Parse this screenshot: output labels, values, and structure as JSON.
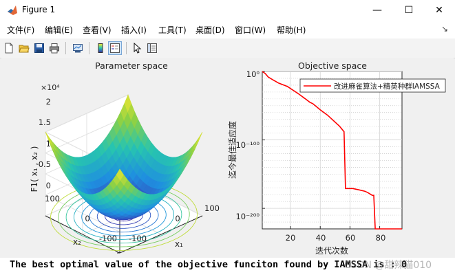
{
  "window": {
    "title": "Figure 1",
    "controls": {
      "minimize": "—",
      "maximize": "☐",
      "close": "✕"
    }
  },
  "menu": {
    "items": [
      {
        "label": "文件(F)"
      },
      {
        "label": "编辑(E)"
      },
      {
        "label": "查看(V)"
      },
      {
        "label": "插入(I)"
      },
      {
        "label": "工具(T)"
      },
      {
        "label": "桌面(D)"
      },
      {
        "label": "窗口(W)"
      },
      {
        "label": "帮助(H)"
      }
    ],
    "overflow_glyph": "↘"
  },
  "toolbar": {
    "icons": [
      "new-figure-icon",
      "open-file-icon",
      "save-icon",
      "print-icon",
      "link-plot-icon",
      "colorbar-icon",
      "legend-icon",
      "pointer-icon",
      "property-inspector-icon"
    ]
  },
  "chart_data": [
    {
      "type": "surface",
      "title": "Parameter space",
      "xlabel": "x₁",
      "ylabel": "x₂",
      "zlabel": "F1( x₁ , x₂ )",
      "z_exponent": "×10⁴",
      "z_ticks": [
        "0",
        "0.5",
        "1",
        "1.5",
        "2"
      ],
      "x_ticks": [
        "-100",
        "0",
        "100"
      ],
      "y_ticks": [
        "-100",
        "0",
        "100"
      ],
      "xlim": [
        -100,
        100
      ],
      "ylim": [
        -100,
        100
      ],
      "zlim": [
        0,
        20000
      ],
      "function": "x1^2 + x2^2",
      "colormap": [
        "#3e26a8",
        "#1f8fe0",
        "#27c4b0",
        "#8bd046",
        "#f6e92e"
      ],
      "contour_floor": true
    },
    {
      "type": "line",
      "title": "Objective space",
      "xlabel": "迭代次数",
      "ylabel": "迄今最佳适应度",
      "yscale": "log",
      "xlim": [
        1,
        95
      ],
      "ylim": [
        1e-230,
        1
      ],
      "x_ticks": [
        "20",
        "40",
        "60",
        "80"
      ],
      "y_ticks": [
        "10⁰",
        "10⁻¹⁰⁰",
        "10⁻²⁰⁰"
      ],
      "grid": true,
      "legend_location": "top-right",
      "series": [
        {
          "name": "改进麻雀算法+精英种群IAMSSA",
          "color": "#ff0000",
          "x": [
            1,
            3,
            5,
            8,
            12,
            18,
            25,
            30,
            33,
            35,
            40,
            45,
            48,
            53,
            56,
            57,
            58,
            62,
            66,
            70,
            72,
            75,
            76,
            77,
            80,
            85,
            90,
            95
          ],
          "log10_y": [
            0,
            -3,
            -8,
            -12,
            -17,
            -22,
            -32,
            -40,
            -45,
            -47,
            -56,
            -64,
            -70,
            -80,
            -88,
            -171,
            -171,
            -171,
            -173,
            -175,
            -177,
            -181,
            -181,
            -230,
            -230,
            -230,
            -230,
            -230
          ]
        }
      ]
    }
  ],
  "console": {
    "text": "The best optimal value of the objective funciton found by IAMSSA is : 0",
    "watermark": "CSDN @甜辣猫010"
  }
}
